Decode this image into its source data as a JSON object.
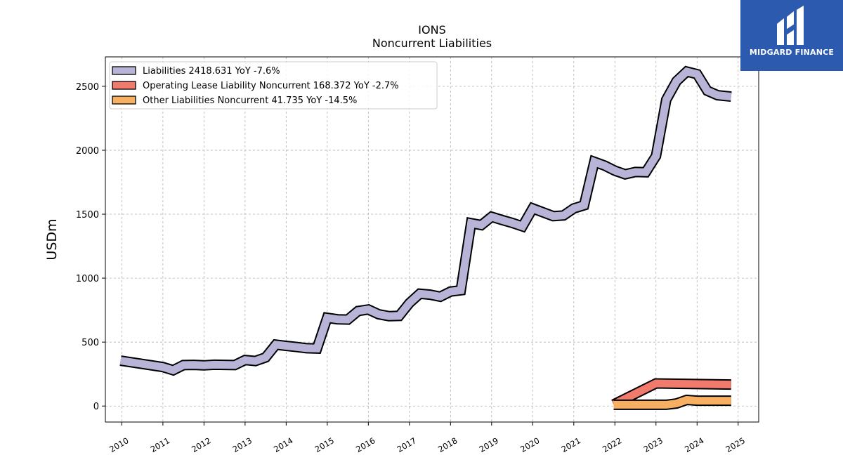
{
  "chart_data": {
    "type": "area",
    "title": "IONS",
    "subtitle": "Noncurrent  Liabilities",
    "ylabel": "USDm",
    "xlim": [
      2009.6,
      2025.5
    ],
    "ylim": [
      -125,
      2730
    ],
    "yticks": [
      0,
      500,
      1000,
      1500,
      2000,
      2500
    ],
    "xticks": [
      "2010",
      "2011",
      "2012",
      "2013",
      "2014",
      "2015",
      "2016",
      "2017",
      "2018",
      "2019",
      "2020",
      "2021",
      "2022",
      "2023",
      "2024",
      "2025"
    ],
    "grid": true,
    "legend_position": "top-left",
    "series": [
      {
        "name": "Liabilities  2418.631 YoY -7.6%",
        "color": "#b7b4d8",
        "x": [
          2009.97,
          2011.0,
          2011.25,
          2011.5,
          2011.75,
          2012.0,
          2012.25,
          2012.5,
          2012.75,
          2013.0,
          2013.25,
          2013.5,
          2013.75,
          2014.0,
          2014.25,
          2014.5,
          2014.75,
          2015.0,
          2015.25,
          2015.5,
          2015.75,
          2016.0,
          2016.25,
          2016.5,
          2016.75,
          2017.0,
          2017.25,
          2017.5,
          2017.75,
          2018.0,
          2018.25,
          2018.5,
          2018.75,
          2019.0,
          2019.25,
          2019.5,
          2019.75,
          2020.0,
          2020.25,
          2020.5,
          2020.75,
          2021.0,
          2021.25,
          2021.5,
          2021.75,
          2022.0,
          2022.25,
          2022.5,
          2022.75,
          2023.0,
          2023.25,
          2023.5,
          2023.75,
          2024.0,
          2024.25,
          2024.5,
          2024.83
        ],
        "values": [
          355,
          305,
          280,
          320,
          322,
          318,
          323,
          322,
          320,
          360,
          352,
          380,
          480,
          470,
          462,
          452,
          450,
          690,
          678,
          676,
          743,
          755,
          718,
          703,
          705,
          805,
          878,
          871,
          855,
          895,
          905,
          1430,
          1415,
          1480,
          1455,
          1432,
          1405,
          1545,
          1515,
          1485,
          1490,
          1545,
          1570,
          1910,
          1880,
          1840,
          1812,
          1830,
          1828,
          1955,
          2395,
          2540,
          2615,
          2595,
          2465,
          2430,
          2419
        ]
      },
      {
        "name": "Operating Lease Liability Noncurrent  168.372 YoY -2.7%",
        "color": "#f07a6c",
        "x": [
          2021.97,
          2023.0,
          2024.83
        ],
        "values": [
          12,
          177,
          168
        ]
      },
      {
        "name": "Other Liabilities Noncurrent  41.735 YoY -14.5%",
        "color": "#f7b062",
        "x": [
          2021.97,
          2022.25,
          2022.5,
          2022.75,
          2023.0,
          2023.25,
          2023.5,
          2023.75,
          2024.0,
          2024.25,
          2024.5,
          2024.83
        ],
        "values": [
          10,
          10,
          10,
          10,
          10,
          10,
          20,
          48,
          42,
          42,
          42,
          42
        ]
      }
    ]
  },
  "logo": {
    "text": "MIDGARD FINANCE",
    "background": "#2b5aae"
  }
}
